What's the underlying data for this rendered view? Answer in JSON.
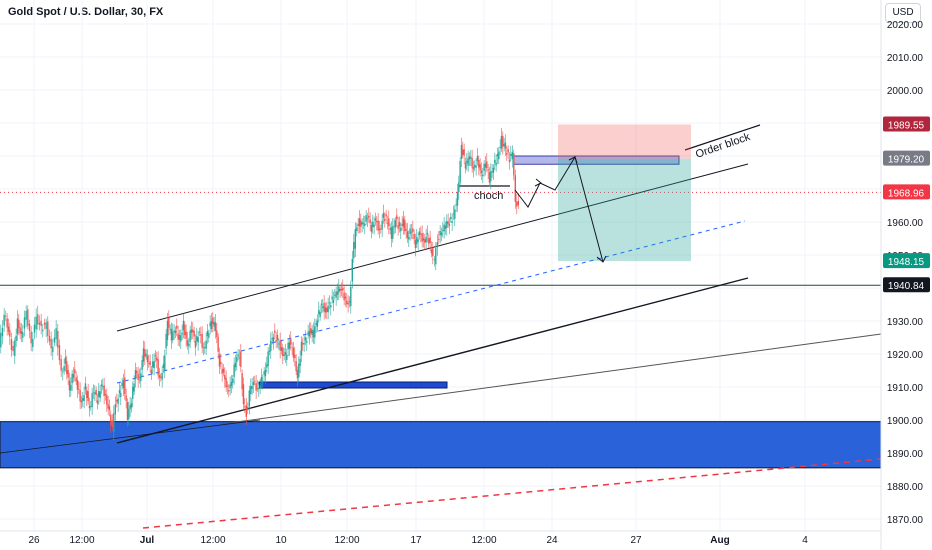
{
  "header": {
    "title": "Gold Spot / U.S. Dollar, 30, FX",
    "currency_button": "USD"
  },
  "colors": {
    "bull": "#26a69a",
    "bear": "#ef5350",
    "zone_blue": "#2962d9",
    "grid": "#f0f3fa"
  },
  "chart_data": {
    "type": "candlestick",
    "title": "Gold Spot / U.S. Dollar, 30, FX",
    "xlabel": "",
    "ylabel": "",
    "y_ticks": [
      1870,
      1880,
      1890,
      1900,
      1910,
      1920,
      1930,
      1940,
      1950,
      1960,
      1970,
      1980,
      1990,
      2000,
      2010,
      2020
    ],
    "ylim": [
      1868,
      2022
    ],
    "x_ticks": [
      "26",
      "12:00",
      "Jul",
      "12:00",
      "10",
      "12:00",
      "17",
      "12:00",
      "24",
      "27",
      "Aug",
      "4"
    ],
    "price_path": [
      [
        0,
        1922
      ],
      [
        5,
        1932
      ],
      [
        9,
        1927
      ],
      [
        14,
        1920
      ],
      [
        18,
        1930
      ],
      [
        22,
        1925
      ],
      [
        27,
        1933
      ],
      [
        32,
        1923
      ],
      [
        37,
        1931
      ],
      [
        42,
        1928
      ],
      [
        47,
        1929
      ],
      [
        52,
        1921
      ],
      [
        57,
        1927
      ],
      [
        62,
        1914
      ],
      [
        66,
        1918
      ],
      [
        70,
        1909
      ],
      [
        74,
        1915
      ],
      [
        78,
        1910
      ],
      [
        82,
        1905
      ],
      [
        86,
        1910
      ],
      [
        90,
        1903
      ],
      [
        94,
        1909
      ],
      [
        98,
        1906
      ],
      [
        102,
        1911
      ],
      [
        106,
        1907
      ],
      [
        110,
        1902
      ],
      [
        113,
        1897
      ],
      [
        116,
        1905
      ],
      [
        120,
        1908
      ],
      [
        124,
        1912
      ],
      [
        128,
        1901
      ],
      [
        132,
        1906
      ],
      [
        136,
        1915
      ],
      [
        140,
        1912
      ],
      [
        144,
        1921
      ],
      [
        148,
        1918
      ],
      [
        152,
        1915
      ],
      [
        156,
        1920
      ],
      [
        160,
        1912
      ],
      [
        164,
        1916
      ],
      [
        168,
        1930
      ],
      [
        172,
        1925
      ],
      [
        176,
        1928
      ],
      [
        180,
        1924
      ],
      [
        184,
        1929
      ],
      [
        188,
        1922
      ],
      [
        192,
        1928
      ],
      [
        196,
        1923
      ],
      [
        200,
        1927
      ],
      [
        204,
        1921
      ],
      [
        208,
        1926
      ],
      [
        212,
        1930
      ],
      [
        216,
        1928
      ],
      [
        220,
        1917
      ],
      [
        224,
        1914
      ],
      [
        228,
        1909
      ],
      [
        232,
        1911
      ],
      [
        236,
        1918
      ],
      [
        240,
        1920
      ],
      [
        244,
        1905
      ],
      [
        247,
        1902
      ],
      [
        250,
        1908
      ],
      [
        254,
        1912
      ],
      [
        258,
        1909
      ],
      [
        262,
        1912
      ],
      [
        266,
        1915
      ],
      [
        270,
        1922
      ],
      [
        274,
        1926
      ],
      [
        278,
        1924
      ],
      [
        282,
        1921
      ],
      [
        286,
        1919
      ],
      [
        290,
        1924
      ],
      [
        294,
        1920
      ],
      [
        298,
        1913
      ],
      [
        302,
        1923
      ],
      [
        306,
        1924
      ],
      [
        310,
        1927
      ],
      [
        314,
        1926
      ],
      [
        318,
        1931
      ],
      [
        322,
        1935
      ],
      [
        326,
        1933
      ],
      [
        330,
        1935
      ],
      [
        334,
        1937
      ],
      [
        338,
        1939
      ],
      [
        342,
        1940
      ],
      [
        346,
        1936
      ],
      [
        350,
        1935
      ],
      [
        353,
        1948
      ],
      [
        356,
        1958
      ],
      [
        360,
        1960
      ],
      [
        364,
        1959
      ],
      [
        368,
        1962
      ],
      [
        372,
        1958
      ],
      [
        376,
        1961
      ],
      [
        380,
        1957
      ],
      [
        384,
        1962
      ],
      [
        388,
        1960
      ],
      [
        392,
        1956
      ],
      [
        396,
        1961
      ],
      [
        400,
        1958
      ],
      [
        404,
        1960
      ],
      [
        408,
        1955
      ],
      [
        412,
        1958
      ],
      [
        416,
        1953
      ],
      [
        420,
        1957
      ],
      [
        424,
        1954
      ],
      [
        428,
        1956
      ],
      [
        432,
        1951
      ],
      [
        435,
        1948
      ],
      [
        438,
        1955
      ],
      [
        442,
        1957
      ],
      [
        446,
        1959
      ],
      [
        450,
        1960
      ],
      [
        454,
        1962
      ],
      [
        458,
        1968
      ],
      [
        462,
        1983
      ],
      [
        466,
        1977
      ],
      [
        470,
        1980
      ],
      [
        474,
        1976
      ],
      [
        478,
        1979
      ],
      [
        482,
        1974
      ],
      [
        486,
        1978
      ],
      [
        490,
        1973
      ],
      [
        494,
        1977
      ],
      [
        498,
        1980
      ],
      [
        502,
        1985
      ],
      [
        506,
        1982
      ],
      [
        510,
        1979
      ],
      [
        513,
        1981
      ],
      [
        516,
        1967
      ],
      [
        519,
        1964
      ]
    ],
    "price_labels": [
      {
        "value": 1989.55,
        "text": "1989.55",
        "color": "#b2263d"
      },
      {
        "value": 1979.2,
        "text": "1979.20",
        "color": "#787b86"
      },
      {
        "value": 1968.96,
        "text": "1968.96",
        "color": "#f23645"
      },
      {
        "value": 1948.15,
        "text": "1948.15",
        "color": "#089981"
      },
      {
        "value": 1940.84,
        "text": "1940.84",
        "color": "#131722"
      }
    ],
    "horizontal_line": 1940.84,
    "current_price": 1968.96,
    "annotations": [
      {
        "text": "choch",
        "value": 1965
      },
      {
        "text": "Order block",
        "value": 1983
      }
    ],
    "zones": [
      {
        "name": "support-zone",
        "from": 1885.5,
        "to": 1899.5
      },
      {
        "name": "order-block-box",
        "from": 1977.5,
        "to": 1980
      }
    ],
    "position": {
      "entry": 1979.2,
      "stop": 1989.55,
      "target": 1948.15
    }
  }
}
